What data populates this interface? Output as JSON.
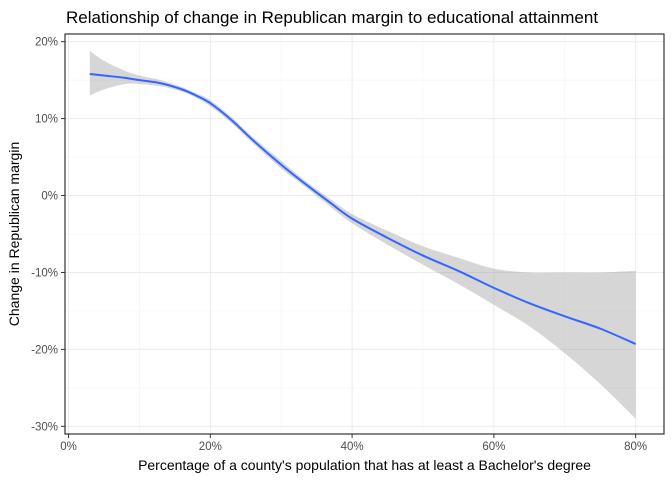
{
  "chart_data": {
    "type": "line",
    "title": "Relationship of change in Republican margin to educational attainment",
    "xlabel": "Percentage of a county's population that has at least a Bachelor's degree",
    "ylabel": "Change in Republican margin",
    "xlim": [
      -0.5,
      84.0
    ],
    "ylim": [
      -31.0,
      21.0
    ],
    "x_ticks": [
      0,
      20,
      40,
      60,
      80
    ],
    "x_tick_labels": [
      "0%",
      "20%",
      "40%",
      "60%",
      "80%"
    ],
    "y_ticks": [
      20,
      10,
      0,
      -10,
      -20,
      -30
    ],
    "y_tick_labels": [
      "20%",
      "10%",
      "0%",
      "-10%",
      "-20%",
      "-30%"
    ],
    "grid": true,
    "legend": "none",
    "colors": {
      "line": "#3366ff",
      "ribbon": "#999999"
    },
    "series": [
      {
        "x": [
          3,
          5,
          8,
          10,
          13,
          16,
          18,
          20,
          23,
          26,
          30,
          33,
          37,
          40,
          45,
          50,
          55,
          60,
          65,
          70,
          75,
          80
        ],
        "y": [
          15.8,
          15.6,
          15.3,
          15.0,
          14.6,
          13.8,
          13.0,
          12.0,
          9.8,
          7.2,
          4.0,
          1.8,
          -1.0,
          -3.0,
          -5.5,
          -7.8,
          -9.8,
          -12.0,
          -14.0,
          -15.7,
          -17.3,
          -19.3
        ],
        "lower": [
          13.0,
          13.8,
          14.5,
          14.5,
          14.2,
          13.5,
          12.7,
          11.6,
          9.4,
          6.8,
          3.5,
          1.4,
          -1.5,
          -3.6,
          -6.4,
          -9.0,
          -11.5,
          -14.2,
          -17.0,
          -20.5,
          -24.5,
          -29.0
        ],
        "upper": [
          18.8,
          17.5,
          16.2,
          15.6,
          15.0,
          14.1,
          13.3,
          12.4,
          10.2,
          7.6,
          4.5,
          2.2,
          -0.5,
          -2.4,
          -4.6,
          -6.6,
          -8.1,
          -9.5,
          -10.0,
          -10.0,
          -10.0,
          -9.8
        ]
      }
    ]
  }
}
